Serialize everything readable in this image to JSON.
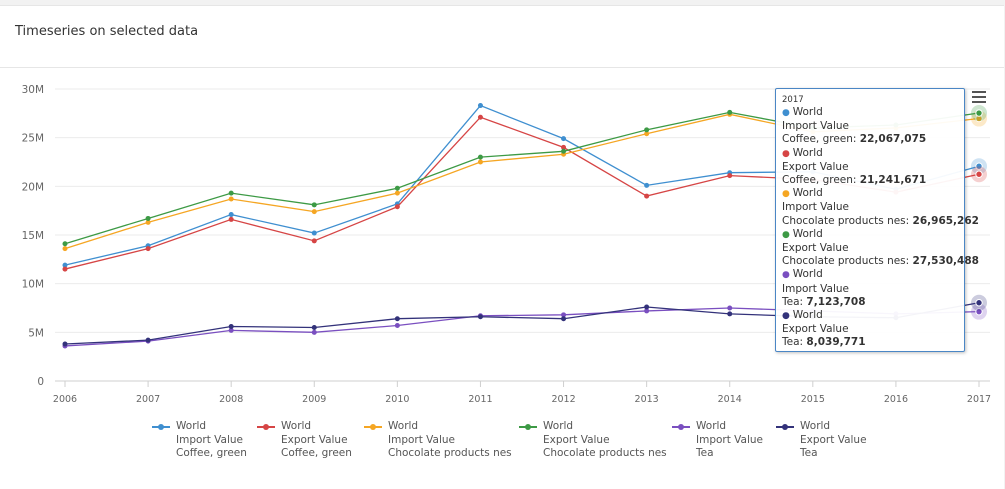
{
  "panel": {
    "title": "Timeseries on selected data"
  },
  "chart_data": {
    "type": "line",
    "x": [
      2006,
      2007,
      2008,
      2009,
      2010,
      2011,
      2012,
      2013,
      2014,
      2015,
      2016,
      2017
    ],
    "ylim": [
      0,
      30000000
    ],
    "y_ticks": [
      "0",
      "5M",
      "10M",
      "15M",
      "20M",
      "25M",
      "30M"
    ],
    "grid": true,
    "legend_position": "bottom",
    "series": [
      {
        "name": "World Import Value Coffee, green",
        "reporter": "World",
        "flow": "Import Value",
        "product": "Coffee, green",
        "color": "#3f8fd0",
        "values": [
          11900000,
          13900000,
          17100000,
          15200000,
          18200000,
          28300000,
          24900000,
          20100000,
          21400000,
          21500000,
          19700000,
          22067075
        ]
      },
      {
        "name": "World Export Value Coffee, green",
        "reporter": "World",
        "flow": "Export Value",
        "product": "Coffee, green",
        "color": "#d64545",
        "values": [
          11500000,
          13600000,
          16600000,
          14400000,
          17900000,
          27100000,
          24000000,
          19000000,
          21100000,
          20700000,
          19400000,
          21241671
        ]
      },
      {
        "name": "World Import Value Chocolate products nes",
        "reporter": "World",
        "flow": "Import Value",
        "product": "Chocolate products nes",
        "color": "#f5a623",
        "values": [
          13600000,
          16300000,
          18700000,
          17400000,
          19300000,
          22500000,
          23300000,
          25400000,
          27400000,
          25600000,
          26000000,
          26965262
        ]
      },
      {
        "name": "World Export Value Chocolate products nes",
        "reporter": "World",
        "flow": "Export Value",
        "product": "Chocolate products nes",
        "color": "#3d9a45",
        "values": [
          14100000,
          16700000,
          19300000,
          18100000,
          19800000,
          23000000,
          23600000,
          25800000,
          27600000,
          26000000,
          26300000,
          27530488
        ]
      },
      {
        "name": "World Import Value Tea",
        "reporter": "World",
        "flow": "Import Value",
        "product": "Tea",
        "color": "#7a4fc0",
        "values": [
          3600000,
          4100000,
          5200000,
          5000000,
          5700000,
          6700000,
          6800000,
          7200000,
          7500000,
          7200000,
          6900000,
          7123708
        ]
      },
      {
        "name": "World Export Value Tea",
        "reporter": "World",
        "flow": "Export Value",
        "product": "Tea",
        "color": "#33327a",
        "values": [
          3800000,
          4200000,
          5600000,
          5500000,
          6400000,
          6600000,
          6400000,
          7600000,
          6900000,
          6600000,
          6500000,
          8039771
        ]
      }
    ]
  },
  "tooltip": {
    "header": "2017",
    "entries": [
      {
        "reporter": "World",
        "flow": "Import Value",
        "product": "Coffee, green:",
        "value": "22,067,075",
        "color": "#3f8fd0"
      },
      {
        "reporter": "World",
        "flow": "Export Value",
        "product": "Coffee, green:",
        "value": "21,241,671",
        "color": "#d64545"
      },
      {
        "reporter": "World",
        "flow": "Import Value",
        "product": "Chocolate products nes:",
        "value": "26,965,262",
        "color": "#f5a623"
      },
      {
        "reporter": "World",
        "flow": "Export Value",
        "product": "Chocolate products nes:",
        "value": "27,530,488",
        "color": "#3d9a45"
      },
      {
        "reporter": "World",
        "flow": "Import Value",
        "product": "Tea:",
        "value": "7,123,708",
        "color": "#7a4fc0"
      },
      {
        "reporter": "World",
        "flow": "Export Value",
        "product": "Tea:",
        "value": "8,039,771",
        "color": "#33327a"
      }
    ]
  },
  "legend": [
    {
      "line1": "World",
      "line2": "Import Value",
      "line3": "Coffee, green",
      "color": "#3f8fd0"
    },
    {
      "line1": "World",
      "line2": "Export Value",
      "line3": "Coffee, green",
      "color": "#d64545"
    },
    {
      "line1": "World",
      "line2": "Import Value",
      "line3": "Chocolate products nes",
      "color": "#f5a623"
    },
    {
      "line1": "World",
      "line2": "Export Value",
      "line3": "Chocolate products nes",
      "color": "#3d9a45"
    },
    {
      "line1": "World",
      "line2": "Import Value",
      "line3": "Tea",
      "color": "#7a4fc0"
    },
    {
      "line1": "World",
      "line2": "Export Value",
      "line3": "Tea",
      "color": "#33327a"
    }
  ],
  "menu": {
    "icon": "hamburger-menu-icon"
  }
}
